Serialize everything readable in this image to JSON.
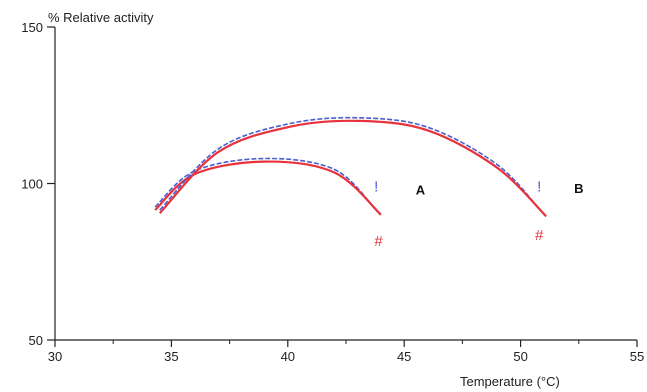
{
  "chart_data": {
    "type": "line",
    "xlabel": "Temperature (°C)",
    "ylabel": "% Relative activity",
    "xlim": [
      30,
      55
    ],
    "ylim": [
      50,
      150
    ],
    "x_ticks": [
      30,
      35,
      40,
      45,
      50,
      55
    ],
    "x_tick_labels": [
      "30",
      "35",
      "40",
      "45",
      "50",
      "55"
    ],
    "y_ticks": [
      50,
      100,
      150
    ],
    "y_tick_labels": [
      "50",
      "100",
      "150"
    ],
    "series": [
      {
        "name": "A",
        "points": [
          {
            "x": 34.3,
            "y": 91.5,
            "style": "solid",
            "color": "#e8323c"
          },
          {
            "x": 36.0,
            "y": 103.0,
            "style": "solid",
            "color": "#e8323c"
          },
          {
            "x": 39.0,
            "y": 107.0,
            "style": "solid",
            "color": "#e8323c"
          },
          {
            "x": 42.0,
            "y": 103.5,
            "style": "solid",
            "color": "#e8323c"
          },
          {
            "x": 44.0,
            "y": 90.0,
            "style": "solid",
            "color": "#e8323c"
          }
        ],
        "dashed_points": [
          {
            "x": 34.3,
            "y": 92.5
          },
          {
            "x": 36.0,
            "y": 104.0
          },
          {
            "x": 39.0,
            "y": 108.0
          },
          {
            "x": 42.0,
            "y": 104.5
          },
          {
            "x": 43.8,
            "y": 91.5
          }
        ],
        "markers": [
          {
            "symbol": "!",
            "x": 43.8,
            "y": 97.5,
            "color": "#4a5fd0"
          },
          {
            "symbol": "#",
            "x": 43.9,
            "y": 80.0,
            "color": "#e8323c"
          }
        ],
        "label": {
          "text": "A",
          "x": 45.7,
          "y": 96.5
        }
      },
      {
        "name": "B",
        "points": [
          {
            "x": 34.5,
            "y": 90.5
          },
          {
            "x": 37.0,
            "y": 110.0
          },
          {
            "x": 40.0,
            "y": 118.0
          },
          {
            "x": 43.0,
            "y": 120.0
          },
          {
            "x": 46.0,
            "y": 117.0
          },
          {
            "x": 49.0,
            "y": 105.0
          },
          {
            "x": 51.1,
            "y": 89.5
          }
        ],
        "dashed_points": [
          {
            "x": 34.5,
            "y": 91.5
          },
          {
            "x": 37.0,
            "y": 111.0
          },
          {
            "x": 40.0,
            "y": 119.0
          },
          {
            "x": 43.0,
            "y": 121.0
          },
          {
            "x": 46.0,
            "y": 118.0
          },
          {
            "x": 49.0,
            "y": 106.0
          },
          {
            "x": 50.9,
            "y": 91.0
          }
        ],
        "markers": [
          {
            "symbol": "!",
            "x": 50.8,
            "y": 97.5,
            "color": "#4a5fd0"
          },
          {
            "symbol": "#",
            "x": 50.8,
            "y": 82.0,
            "color": "#e8323c"
          }
        ],
        "label": {
          "text": "B",
          "x": 52.5,
          "y": 97.0
        }
      }
    ],
    "colors": {
      "solid_curve": "#e8323c",
      "dashed_curve": "#4a5fd0",
      "axis": "#222222"
    },
    "grid": false,
    "legend": "none"
  }
}
